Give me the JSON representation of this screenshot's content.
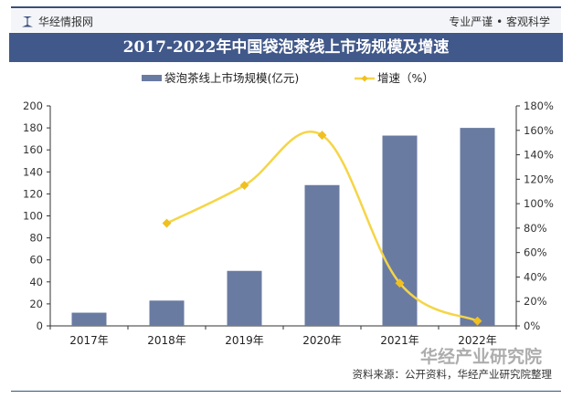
{
  "header": {
    "brand": "华经情报网",
    "slogan": "专业严谨 • 客观科学"
  },
  "source": "资料来源：公开资料，华经产业研究院整理",
  "watermark": "华经产业研究院",
  "chart_data": {
    "type": "bar+line",
    "title": "2017-2022年中国袋泡茶线上市场规模及增速",
    "categories": [
      "2017年",
      "2018年",
      "2019年",
      "2020年",
      "2021年",
      "2022年"
    ],
    "series": [
      {
        "name": "袋泡茶线上市场规模(亿元)",
        "type": "bar",
        "axis": "left",
        "color": "#6a7ba2",
        "values": [
          12,
          23,
          50,
          128,
          173,
          180
        ]
      },
      {
        "name": "增速（%）",
        "type": "line",
        "axis": "right",
        "color": "#f5d547",
        "values": [
          null,
          84,
          115,
          156,
          35,
          4
        ]
      }
    ],
    "left_axis": {
      "min": 0,
      "max": 200,
      "step": 20,
      "ticks": [
        "0",
        "20",
        "40",
        "60",
        "80",
        "100",
        "120",
        "140",
        "160",
        "180",
        "200"
      ]
    },
    "right_axis": {
      "min": 0,
      "max": 180,
      "step": 20,
      "ticks": [
        "0%",
        "20%",
        "40%",
        "60%",
        "80%",
        "100%",
        "120%",
        "140%",
        "160%",
        "180%"
      ]
    },
    "legend": "top-center"
  }
}
